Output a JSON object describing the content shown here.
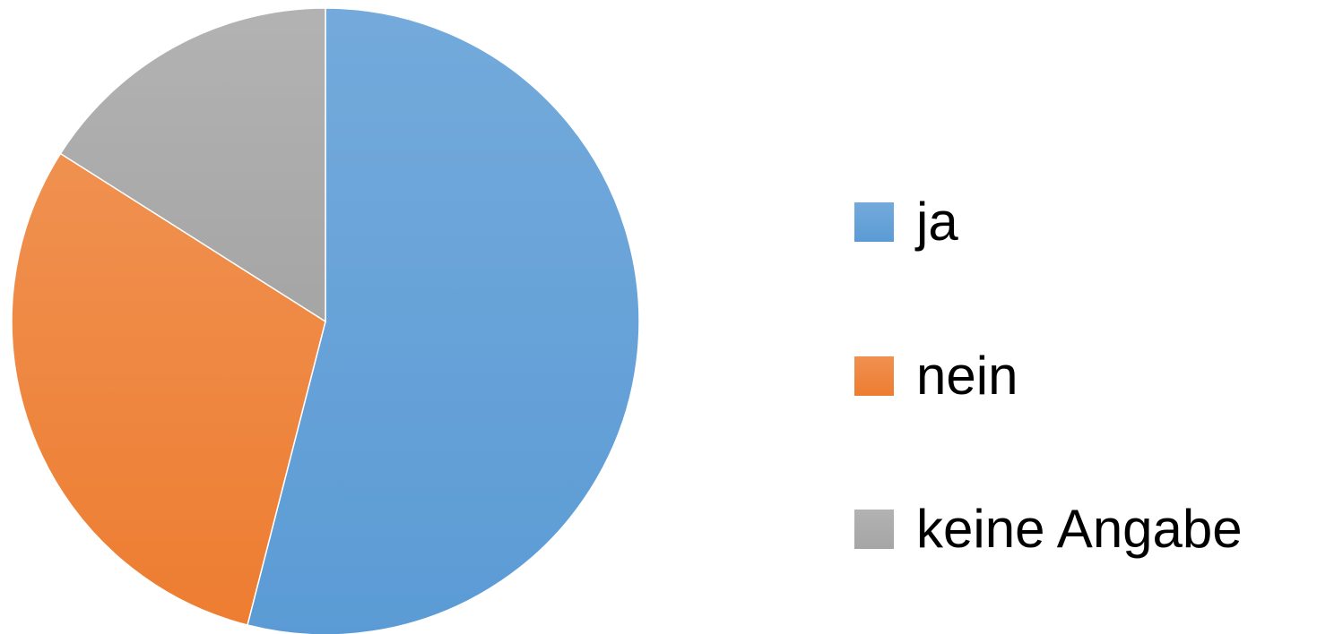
{
  "chart_data": {
    "type": "pie",
    "categories": [
      "ja",
      "nein",
      "keine Angabe"
    ],
    "values": [
      54,
      30,
      16
    ],
    "colors": [
      "#5b9bd5",
      "#ed7d31",
      "#a5a5a5"
    ],
    "legend": "right"
  }
}
